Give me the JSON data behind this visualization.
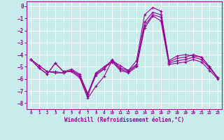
{
  "xlabel": "Windchill (Refroidissement éolien,°C)",
  "background_color": "#c8ecec",
  "grid_color": "#ffffff",
  "line_color": "#990099",
  "xlim": [
    -0.5,
    23.5
  ],
  "ylim": [
    -8.5,
    0.4
  ],
  "xticks": [
    0,
    1,
    2,
    3,
    4,
    5,
    6,
    7,
    8,
    9,
    10,
    11,
    12,
    13,
    14,
    15,
    16,
    17,
    18,
    19,
    20,
    21,
    22,
    23
  ],
  "yticks": [
    0,
    -1,
    -2,
    -3,
    -4,
    -5,
    -6,
    -7,
    -8
  ],
  "line1_x": [
    0,
    1,
    2,
    3,
    4,
    5,
    6,
    7,
    8,
    9,
    10,
    11,
    12,
    13,
    14,
    15,
    16,
    17,
    18,
    19,
    20,
    21,
    22,
    23
  ],
  "line1_y": [
    -4.4,
    -5.1,
    -5.6,
    -4.7,
    -5.4,
    -5.4,
    -5.9,
    -7.6,
    -6.6,
    -5.8,
    -4.5,
    -4.9,
    -5.3,
    -4.5,
    -0.7,
    -0.1,
    -0.4,
    -4.5,
    -4.1,
    -4.0,
    -4.1,
    -4.2,
    -5.0,
    -5.9
  ],
  "line2_x": [
    0,
    1,
    2,
    3,
    4,
    5,
    6,
    7,
    8,
    9,
    10,
    11,
    12,
    13,
    14,
    15,
    16,
    17,
    18,
    19,
    20,
    21,
    22,
    23
  ],
  "line2_y": [
    -4.4,
    -5.1,
    -5.6,
    -4.7,
    -5.4,
    -5.2,
    -5.6,
    -7.3,
    -5.7,
    -5.2,
    -4.4,
    -5.1,
    -5.3,
    -4.8,
    -1.3,
    -0.5,
    -0.7,
    -4.6,
    -4.3,
    -4.2,
    -4.0,
    -4.2,
    -5.0,
    -5.9
  ],
  "line3_x": [
    0,
    1,
    2,
    3,
    4,
    5,
    6,
    7,
    8,
    9,
    10,
    11,
    12,
    13,
    14,
    15,
    16,
    17,
    18,
    19,
    20,
    21,
    22,
    23
  ],
  "line3_y": [
    -4.4,
    -4.9,
    -5.4,
    -5.4,
    -5.5,
    -5.3,
    -5.7,
    -7.2,
    -5.5,
    -5.0,
    -4.5,
    -5.2,
    -5.4,
    -4.9,
    -1.6,
    -0.7,
    -0.9,
    -4.7,
    -4.5,
    -4.4,
    -4.2,
    -4.4,
    -5.1,
    -5.9
  ],
  "line4_x": [
    0,
    1,
    2,
    3,
    4,
    5,
    6,
    7,
    8,
    9,
    10,
    11,
    12,
    13,
    14,
    15,
    16,
    17,
    18,
    19,
    20,
    21,
    22,
    23
  ],
  "line4_y": [
    -4.4,
    -4.9,
    -5.4,
    -5.5,
    -5.5,
    -5.3,
    -5.8,
    -7.4,
    -5.6,
    -5.1,
    -4.6,
    -5.3,
    -5.5,
    -5.0,
    -1.8,
    -0.8,
    -1.2,
    -4.8,
    -4.7,
    -4.6,
    -4.4,
    -4.6,
    -5.3,
    -6.0
  ]
}
